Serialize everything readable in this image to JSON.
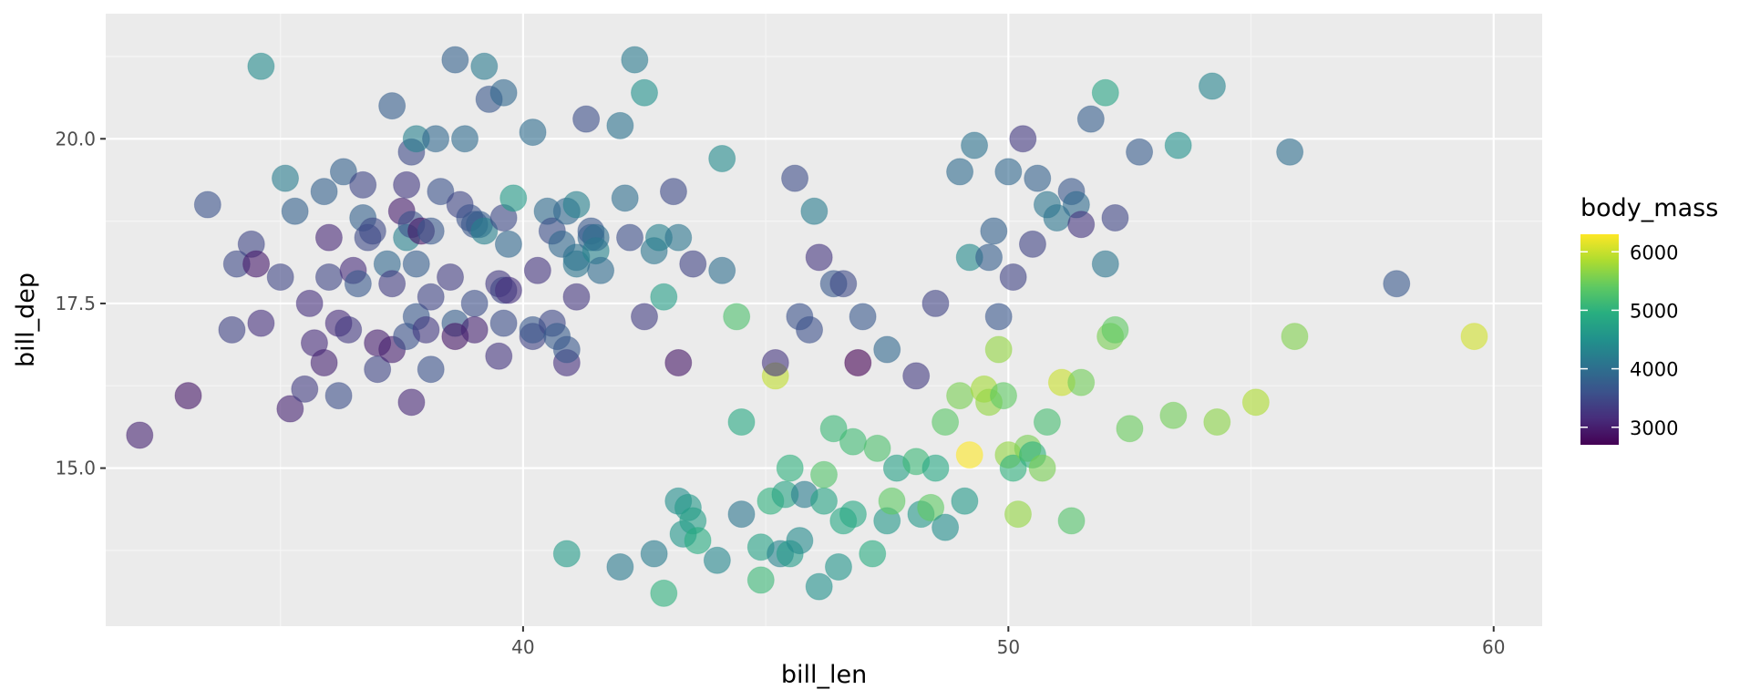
{
  "chart_data": {
    "type": "scatter",
    "title": "",
    "xlabel": "bill_len",
    "ylabel": "bill_dep",
    "xlim": [
      31.4,
      61.0
    ],
    "ylim": [
      12.6,
      21.9
    ],
    "x_ticks": [
      40,
      50,
      60
    ],
    "x_tick_labels": [
      "40",
      "50",
      "60"
    ],
    "y_ticks": [
      15.0,
      17.5,
      20.0
    ],
    "y_tick_labels": [
      "15.0",
      "17.5",
      "20.0"
    ],
    "grid": true,
    "color_variable": "body_mass",
    "color_scale": "viridis",
    "color_range": [
      2700,
      6300
    ],
    "legend": {
      "title": "body_mass",
      "placement": "right",
      "breaks": [
        3000,
        4000,
        5000,
        6000
      ],
      "break_labels": [
        "3000",
        "4000",
        "5000",
        "6000"
      ]
    },
    "colors": {
      "panel_background": "#ebebeb",
      "grid_major": "#ffffff",
      "grid_minor": "#f5f5f5",
      "viridis": [
        "#440154",
        "#472d7b",
        "#3b528b",
        "#2c728e",
        "#21918c",
        "#28ae80",
        "#5ec962",
        "#addc30",
        "#fde725"
      ]
    },
    "point_alpha": 0.6,
    "points": [
      [
        32.1,
        15.5,
        3050
      ],
      [
        33.1,
        16.1,
        2900
      ],
      [
        33.5,
        19.0,
        3600
      ],
      [
        34.0,
        17.1,
        3400
      ],
      [
        34.1,
        18.1,
        3500
      ],
      [
        34.4,
        18.4,
        3450
      ],
      [
        34.5,
        18.1,
        2950
      ],
      [
        34.6,
        21.1,
        4400
      ],
      [
        34.6,
        17.2,
        3200
      ],
      [
        35.0,
        17.9,
        3450
      ],
      [
        35.1,
        19.4,
        4200
      ],
      [
        35.2,
        15.9,
        3050
      ],
      [
        35.3,
        18.9,
        3800
      ],
      [
        35.5,
        16.2,
        3350
      ],
      [
        35.6,
        17.5,
        3200
      ],
      [
        35.7,
        16.9,
        3150
      ],
      [
        35.9,
        19.2,
        3800
      ],
      [
        35.9,
        16.6,
        3050
      ],
      [
        36.0,
        17.9,
        3450
      ],
      [
        36.0,
        18.5,
        3100
      ],
      [
        36.2,
        17.2,
        3150
      ],
      [
        36.2,
        16.1,
        3550
      ],
      [
        36.3,
        19.5,
        3800
      ],
      [
        36.4,
        17.1,
        3300
      ],
      [
        36.5,
        18.0,
        3150
      ],
      [
        36.6,
        17.8,
        3700
      ],
      [
        36.7,
        18.8,
        3800
      ],
      [
        36.7,
        19.3,
        3450
      ],
      [
        36.8,
        18.5,
        3500
      ],
      [
        36.9,
        18.6,
        3500
      ],
      [
        37.0,
        16.9,
        3000
      ],
      [
        37.0,
        16.5,
        3450
      ],
      [
        37.2,
        18.1,
        3900
      ],
      [
        37.3,
        20.5,
        3775
      ],
      [
        37.3,
        17.8,
        3350
      ],
      [
        37.3,
        16.8,
        3000
      ],
      [
        37.5,
        18.9,
        2975
      ],
      [
        37.6,
        19.3,
        3300
      ],
      [
        37.6,
        17.0,
        3600
      ],
      [
        37.6,
        18.5,
        4250
      ],
      [
        37.7,
        19.8,
        3500
      ],
      [
        37.7,
        18.7,
        3600
      ],
      [
        37.7,
        16.0,
        3100
      ],
      [
        37.8,
        20.0,
        4250
      ],
      [
        37.8,
        18.1,
        3750
      ],
      [
        37.8,
        17.3,
        3700
      ],
      [
        37.9,
        18.6,
        2900
      ],
      [
        38.0,
        17.1,
        3300
      ],
      [
        38.1,
        18.6,
        3700
      ],
      [
        38.1,
        17.6,
        3425
      ],
      [
        38.1,
        16.5,
        3600
      ],
      [
        38.2,
        20.0,
        3900
      ],
      [
        38.3,
        19.2,
        3600
      ],
      [
        38.5,
        17.9,
        3350
      ],
      [
        38.6,
        21.2,
        3800
      ],
      [
        38.6,
        17.2,
        3750
      ],
      [
        38.6,
        17.0,
        2900
      ],
      [
        38.7,
        19.0,
        3450
      ],
      [
        38.8,
        20.0,
        3950
      ],
      [
        38.9,
        18.8,
        3600
      ],
      [
        39.0,
        18.7,
        3650
      ],
      [
        39.0,
        17.5,
        3550
      ],
      [
        39.0,
        17.1,
        3050
      ],
      [
        39.1,
        18.7,
        3750
      ],
      [
        39.2,
        21.1,
        4150
      ],
      [
        39.2,
        18.6,
        4250
      ],
      [
        39.3,
        20.6,
        3650
      ],
      [
        39.5,
        16.7,
        3250
      ],
      [
        39.5,
        17.8,
        3300
      ],
      [
        39.6,
        18.8,
        3500
      ],
      [
        39.6,
        17.7,
        3450
      ],
      [
        39.6,
        20.7,
        3900
      ],
      [
        39.6,
        17.2,
        3550
      ],
      [
        39.7,
        18.4,
        3900
      ],
      [
        39.7,
        17.7,
        3200
      ],
      [
        39.8,
        19.1,
        4650
      ],
      [
        40.2,
        20.1,
        3975
      ],
      [
        40.2,
        17.0,
        3400
      ],
      [
        40.2,
        17.1,
        3700
      ],
      [
        40.3,
        18.0,
        3250
      ],
      [
        40.5,
        18.9,
        3950
      ],
      [
        40.6,
        18.6,
        3550
      ],
      [
        40.6,
        17.2,
        3475
      ],
      [
        40.7,
        17.0,
        3725
      ],
      [
        40.8,
        18.4,
        3900
      ],
      [
        40.9,
        18.9,
        3900
      ],
      [
        40.9,
        16.6,
        3200
      ],
      [
        40.9,
        16.8,
        3700
      ],
      [
        41.1,
        19.0,
        4250
      ],
      [
        41.1,
        18.2,
        4050
      ],
      [
        41.1,
        17.6,
        3275
      ],
      [
        41.1,
        18.1,
        4100
      ],
      [
        41.3,
        20.3,
        3550
      ],
      [
        41.4,
        18.5,
        3875
      ],
      [
        41.4,
        18.6,
        3700
      ],
      [
        41.5,
        18.3,
        4300
      ],
      [
        41.5,
        18.5,
        4000
      ],
      [
        41.6,
        18.0,
        3950
      ],
      [
        42.0,
        20.2,
        4050
      ],
      [
        42.1,
        19.1,
        4000
      ],
      [
        42.2,
        18.5,
        3550
      ],
      [
        42.3,
        21.2,
        4150
      ],
      [
        42.5,
        20.7,
        4500
      ],
      [
        42.5,
        17.3,
        3350
      ],
      [
        42.7,
        18.3,
        4075
      ],
      [
        42.8,
        18.5,
        4250
      ],
      [
        42.9,
        17.6,
        4700
      ],
      [
        43.1,
        19.2,
        3500
      ],
      [
        43.2,
        18.5,
        4100
      ],
      [
        43.2,
        16.6,
        2900
      ],
      [
        43.5,
        18.1,
        3400
      ],
      [
        44.1,
        18.0,
        4000
      ],
      [
        44.1,
        19.7,
        4400
      ],
      [
        40.9,
        13.7,
        4650
      ],
      [
        42.0,
        13.5,
        4150
      ],
      [
        42.7,
        13.7,
        4200
      ],
      [
        42.9,
        13.1,
        5000
      ],
      [
        43.2,
        14.5,
        4450
      ],
      [
        43.3,
        14.0,
        4575
      ],
      [
        43.4,
        14.4,
        4600
      ],
      [
        43.5,
        14.2,
        4700
      ],
      [
        43.6,
        13.9,
        4900
      ],
      [
        44.0,
        13.6,
        4350
      ],
      [
        44.4,
        17.3,
        5250
      ],
      [
        44.5,
        14.3,
        4100
      ],
      [
        44.5,
        15.7,
        4875
      ],
      [
        44.9,
        13.8,
        4750
      ],
      [
        44.9,
        13.3,
        5100
      ],
      [
        45.1,
        14.5,
        5000
      ],
      [
        45.2,
        16.4,
        5950
      ],
      [
        45.3,
        13.7,
        4300
      ],
      [
        45.4,
        14.6,
        4800
      ],
      [
        45.5,
        13.7,
        4650
      ],
      [
        45.5,
        15.0,
        5000
      ],
      [
        45.7,
        13.9,
        4400
      ],
      [
        45.8,
        14.6,
        4200
      ],
      [
        45.9,
        17.1,
        3575
      ],
      [
        46.1,
        13.2,
        4500
      ],
      [
        46.2,
        14.5,
        4800
      ],
      [
        46.2,
        14.9,
        5300
      ],
      [
        46.4,
        15.6,
        5100
      ],
      [
        46.5,
        13.5,
        4550
      ],
      [
        46.6,
        14.2,
        4850
      ],
      [
        46.8,
        14.3,
        4850
      ],
      [
        46.8,
        15.4,
        5150
      ],
      [
        47.2,
        13.7,
        4925
      ],
      [
        47.3,
        15.3,
        5250
      ],
      [
        47.5,
        14.2,
        4600
      ],
      [
        47.6,
        14.5,
        5400
      ],
      [
        47.7,
        15.0,
        4725
      ],
      [
        48.1,
        15.1,
        5100
      ],
      [
        48.2,
        14.3,
        4600
      ],
      [
        48.4,
        14.4,
        5400
      ],
      [
        48.5,
        15.0,
        4850
      ],
      [
        48.7,
        14.1,
        4450
      ],
      [
        48.7,
        15.7,
        5350
      ],
      [
        49.0,
        16.1,
        5550
      ],
      [
        49.1,
        14.5,
        4625
      ],
      [
        49.2,
        15.2,
        6300
      ],
      [
        49.5,
        16.2,
        5800
      ],
      [
        49.6,
        16.0,
        5700
      ],
      [
        49.8,
        16.8,
        5700
      ],
      [
        49.9,
        16.1,
        5400
      ],
      [
        50.0,
        15.2,
        5700
      ],
      [
        50.1,
        15.0,
        5000
      ],
      [
        50.2,
        14.3,
        5700
      ],
      [
        50.4,
        15.3,
        5550
      ],
      [
        50.5,
        15.2,
        5000
      ],
      [
        50.7,
        15.0,
        5550
      ],
      [
        50.8,
        15.7,
        5200
      ],
      [
        51.1,
        16.3,
        6000
      ],
      [
        51.3,
        14.2,
        5300
      ],
      [
        51.5,
        16.3,
        5500
      ],
      [
        52.1,
        17.0,
        5550
      ],
      [
        52.2,
        17.1,
        5400
      ],
      [
        52.5,
        15.6,
        5450
      ],
      [
        53.4,
        15.8,
        5500
      ],
      [
        54.3,
        15.7,
        5650
      ],
      [
        55.1,
        16.0,
        5850
      ],
      [
        55.9,
        17.0,
        5600
      ],
      [
        59.6,
        17.0,
        6050
      ],
      [
        45.2,
        16.6,
        3250
      ],
      [
        45.6,
        19.4,
        3525
      ],
      [
        45.7,
        17.3,
        3600
      ],
      [
        46.0,
        18.9,
        4200
      ],
      [
        46.1,
        18.2,
        3250
      ],
      [
        46.4,
        17.8,
        3700
      ],
      [
        46.6,
        17.8,
        3500
      ],
      [
        46.9,
        16.6,
        2700
      ],
      [
        47.0,
        17.3,
        3700
      ],
      [
        47.5,
        16.8,
        3900
      ],
      [
        48.1,
        16.4,
        3325
      ],
      [
        48.5,
        17.5,
        3400
      ],
      [
        49.0,
        19.5,
        3950
      ],
      [
        49.2,
        18.2,
        4400
      ],
      [
        49.3,
        19.9,
        4050
      ],
      [
        49.6,
        18.2,
        3775
      ],
      [
        49.7,
        18.6,
        3800
      ],
      [
        49.8,
        17.3,
        3675
      ],
      [
        50.0,
        19.5,
        3900
      ],
      [
        50.1,
        17.9,
        3400
      ],
      [
        50.3,
        20.0,
        3300
      ],
      [
        50.5,
        18.4,
        3400
      ],
      [
        50.6,
        19.4,
        3800
      ],
      [
        50.8,
        19.0,
        4100
      ],
      [
        51.0,
        18.8,
        4100
      ],
      [
        51.3,
        19.2,
        3650
      ],
      [
        51.4,
        19.0,
        3950
      ],
      [
        51.5,
        18.7,
        3250
      ],
      [
        51.7,
        20.3,
        3775
      ],
      [
        52.0,
        18.1,
        4100
      ],
      [
        52.0,
        20.7,
        4800
      ],
      [
        52.2,
        18.8,
        3450
      ],
      [
        52.7,
        19.8,
        3725
      ],
      [
        53.5,
        19.9,
        4500
      ],
      [
        54.2,
        20.8,
        4300
      ],
      [
        55.8,
        19.8,
        4000
      ],
      [
        58.0,
        17.8,
        3700
      ]
    ]
  }
}
